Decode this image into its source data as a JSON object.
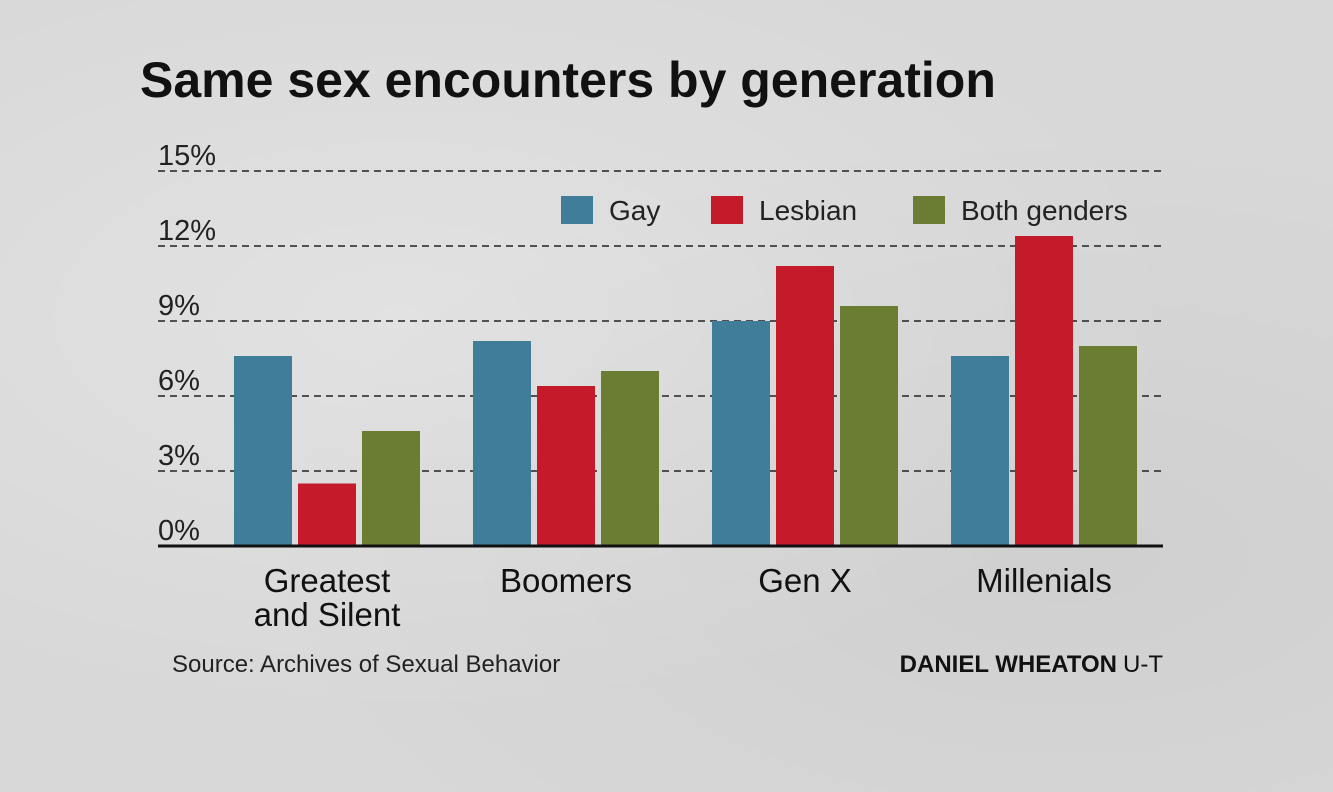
{
  "chart_data": {
    "type": "bar",
    "title": "Same sex encounters by generation",
    "categories": [
      [
        "Greatest",
        "and Silent"
      ],
      [
        "Boomers"
      ],
      [
        "Gen X"
      ],
      [
        "Millenials"
      ]
    ],
    "series": [
      {
        "name": "Gay",
        "color": "#3f7d9a",
        "values": [
          7.6,
          8.2,
          9.0,
          7.6
        ]
      },
      {
        "name": "Lesbian",
        "color": "#c41a2a",
        "values": [
          2.5,
          6.4,
          11.2,
          12.4
        ]
      },
      {
        "name": "Both genders",
        "color": "#6a7d33",
        "values": [
          4.6,
          7.0,
          9.6,
          8.0
        ]
      }
    ],
    "yticks": [
      "0%",
      "3%",
      "6%",
      "9%",
      "12%",
      "15%"
    ],
    "ylim": [
      0,
      15
    ],
    "ytick_step": 3,
    "grid": true,
    "legend_position": "top-right"
  },
  "footer": {
    "source": "Source: Archives of Sexual Behavior",
    "credit_name": "DANIEL WHEATON",
    "credit_org": "U-T"
  }
}
